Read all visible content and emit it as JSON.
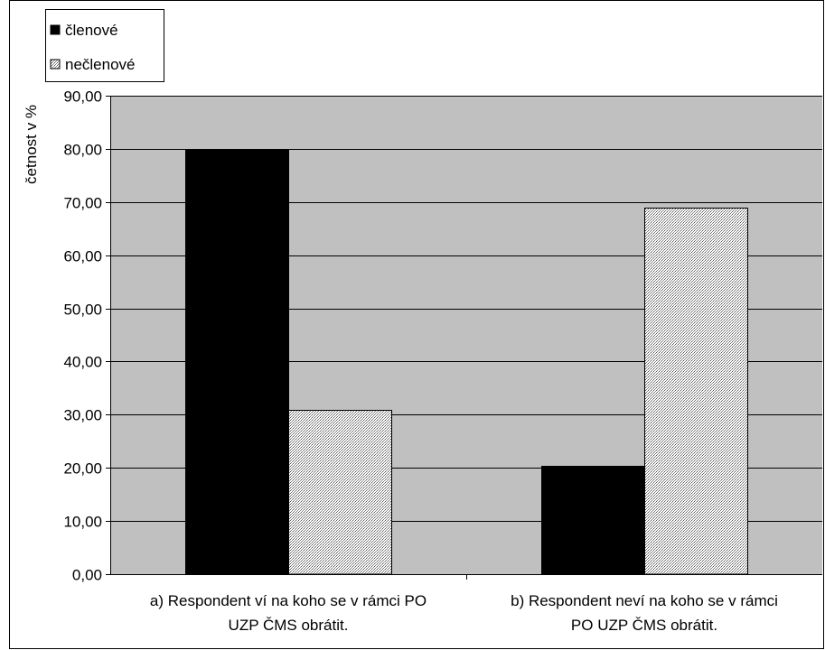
{
  "chart_data": {
    "type": "bar",
    "title": "",
    "xlabel": "",
    "ylabel": "četnost v %",
    "ylim": [
      0,
      90
    ],
    "yticks": [
      0,
      10,
      20,
      30,
      40,
      50,
      60,
      70,
      80,
      90
    ],
    "ytick_labels": [
      "0,00",
      "10,00",
      "20,00",
      "30,00",
      "40,00",
      "50,00",
      "60,00",
      "70,00",
      "80,00",
      "90,00"
    ],
    "grid": true,
    "legend_position": "top-left",
    "categories": [
      [
        "a) Respondent ví na koho se v rámci PO",
        "UZP ČMS obrátit."
      ],
      [
        "b) Respondent neví na koho se v rámci",
        "PO UZP ČMS obrátit."
      ]
    ],
    "series": [
      {
        "name": "členové",
        "values": [
          79.8,
          20.4
        ],
        "color": "#000000",
        "pattern": "solid"
      },
      {
        "name": "nečlenové",
        "values": [
          30.9,
          68.9
        ],
        "color": "#d8d8d8",
        "pattern": "dotted"
      }
    ],
    "plot_background": "#c0c0c0"
  }
}
